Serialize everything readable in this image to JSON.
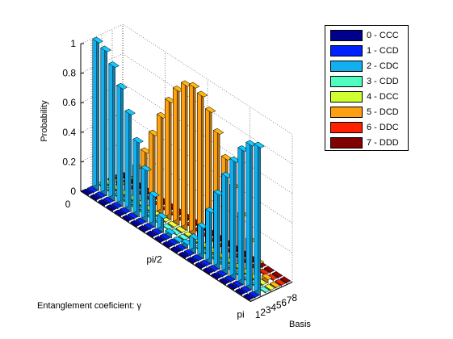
{
  "chart_data": {
    "type": "bar3d",
    "title": "",
    "zlabel": "Probability",
    "xlabel": "Entanglement coeficient: γ",
    "ylabel": "Basis",
    "z_ticks": [
      "0",
      "0.2",
      "0.4",
      "0.6",
      "0.8",
      "1"
    ],
    "zlim": [
      0,
      1
    ],
    "gamma_ticks": [
      "0",
      "pi/2",
      "pi"
    ],
    "basis_ticks": [
      "1",
      "2",
      "3",
      "4",
      "5",
      "6",
      "7",
      "8"
    ],
    "grid": true,
    "legend_position": "top-right",
    "gamma_steps": 21,
    "series": [
      {
        "name": "0 - CCC",
        "color": "#00008f",
        "values": [
          0,
          0,
          0,
          0,
          0,
          0,
          0,
          0,
          0,
          0,
          0,
          0,
          0,
          0,
          0,
          0,
          0,
          0,
          0,
          0,
          0
        ]
      },
      {
        "name": "1 - CCD",
        "color": "#0020ff",
        "values": [
          0,
          0,
          0,
          0,
          0,
          0,
          0,
          0,
          0,
          0,
          0,
          0,
          0,
          0,
          0,
          0,
          0,
          0,
          0,
          0,
          0
        ]
      },
      {
        "name": "2 - CDC",
        "color": "#10b0f0",
        "values": [
          1.0,
          0.976,
          0.905,
          0.794,
          0.655,
          0.5,
          0.345,
          0.206,
          0.095,
          0.024,
          0.0,
          0.024,
          0.095,
          0.206,
          0.345,
          0.5,
          0.655,
          0.794,
          0.905,
          0.976,
          1.0
        ]
      },
      {
        "name": "3 - CDD",
        "color": "#50ffc0",
        "values": [
          0,
          0.002,
          0.006,
          0.01,
          0.014,
          0.016,
          0.014,
          0.01,
          0.006,
          0.002,
          0,
          0.002,
          0.006,
          0.01,
          0.014,
          0.016,
          0.014,
          0.01,
          0.006,
          0.002,
          0
        ]
      },
      {
        "name": "4 - DCC",
        "color": "#d0ff30",
        "values": [
          0,
          0.001,
          0.003,
          0.005,
          0.007,
          0.008,
          0.007,
          0.005,
          0.003,
          0.001,
          0,
          0.001,
          0.003,
          0.005,
          0.007,
          0.008,
          0.007,
          0.005,
          0.003,
          0.001,
          0
        ]
      },
      {
        "name": "5 - DCD",
        "color": "#ffa010",
        "values": [
          0.0,
          0.024,
          0.095,
          0.206,
          0.345,
          0.5,
          0.655,
          0.794,
          0.905,
          0.976,
          1.0,
          0.976,
          0.905,
          0.794,
          0.655,
          0.5,
          0.345,
          0.206,
          0.095,
          0.024,
          0.0
        ]
      },
      {
        "name": "6 - DDC",
        "color": "#ff2000",
        "values": [
          0,
          0,
          0,
          0,
          0,
          0,
          0,
          0,
          0,
          0,
          0,
          0,
          0,
          0,
          0,
          0,
          0,
          0,
          0,
          0,
          0
        ]
      },
      {
        "name": "7 - DDD",
        "color": "#800000",
        "values": [
          0,
          0,
          0,
          0,
          0,
          0,
          0,
          0,
          0,
          0,
          0,
          0,
          0,
          0,
          0,
          0,
          0,
          0,
          0,
          0,
          0
        ]
      }
    ]
  }
}
